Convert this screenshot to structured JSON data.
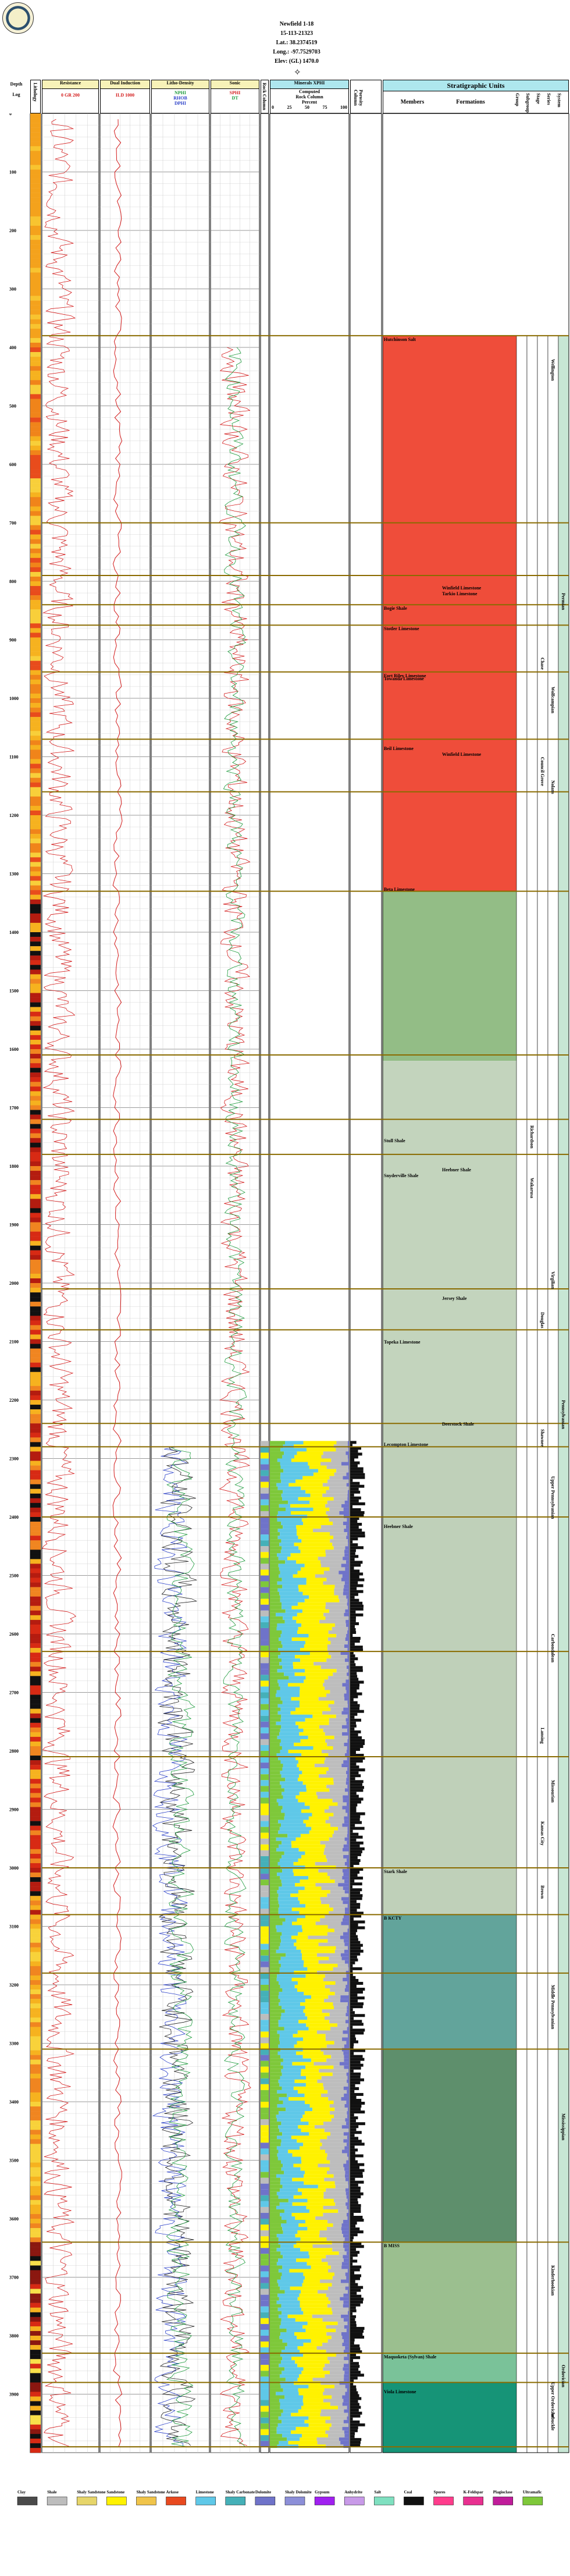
{
  "well": {
    "name": "Newfield 1-18",
    "api": "15-113-21323",
    "lat": "Lat.: 38.2374519",
    "long": "Long.: -97.7529703",
    "elev": "Elev: (GL) 1470.0"
  },
  "header": {
    "depth_label": "Depth",
    "log_label": "Log",
    "columns": [
      {
        "id": "lith",
        "title": "Lithology"
      },
      {
        "id": "resist",
        "title": "Resistance"
      },
      {
        "id": "dual",
        "title": "Dual Induction"
      },
      {
        "id": "litho_density",
        "title": "Litho-Density"
      },
      {
        "id": "sonic",
        "title": "Sonic"
      },
      {
        "id": "thin",
        "title": "Rock Column"
      },
      {
        "id": "minerals",
        "title": "Minerals XPHI"
      },
      {
        "id": "porosity",
        "title": "Porosity Column"
      }
    ],
    "resist_scale": [
      "GR",
      "0",
      "0",
      "200",
      "0",
      "1"
    ],
    "dual_scale": [
      "ILD",
      "1000"
    ],
    "litho_scale": [
      "NPHI",
      "RHOB",
      "DPHI"
    ],
    "sonic_scale": [
      "SPHI",
      "DT"
    ],
    "minerals_sub": [
      "Computed",
      "Rock Column"
    ],
    "minerals_percent": "Percent",
    "minerals_ticks": [
      "0",
      "25",
      "50",
      "75",
      "100"
    ],
    "compass": "✧"
  },
  "strat_header": {
    "title": "Stratigraphic Units",
    "members": "Members",
    "formations": "Formations",
    "vertical": [
      "Group",
      "Subgroup",
      "Stage",
      "Series",
      "System"
    ]
  },
  "depth_ticks": [
    "0",
    "100",
    "200",
    "300",
    "400",
    "500",
    "600",
    "700",
    "800",
    "900",
    "1000",
    "1100",
    "1200",
    "1300",
    "1400",
    "1500",
    "1600",
    "1700",
    "1800",
    "1900",
    "2000",
    "2100",
    "2200",
    "2300",
    "2400",
    "2500",
    "2600",
    "2700",
    "2800",
    "2900",
    "3000",
    "3100",
    "3200",
    "3300",
    "3400",
    "3500",
    "3600",
    "3700",
    "3800",
    "3900"
  ],
  "members": [
    {
      "name": "Hutchinson Salt",
      "depth": 380
    },
    {
      "name": "Winfield Limestone",
      "depth": 805
    },
    {
      "name": "Tarkio Limestone",
      "depth": 815
    },
    {
      "name": "Bogie Shale",
      "depth": 840
    },
    {
      "name": "Stotler Limestone",
      "depth": 875
    },
    {
      "name": "Fort Riley Limestone",
      "depth": 955
    },
    {
      "name": "Towanda Limestone",
      "depth": 960
    },
    {
      "name": "Beil Limestone",
      "depth": 1080
    },
    {
      "name": "Winfield Limestone",
      "depth": 1090
    },
    {
      "name": "Beta Limestone",
      "depth": 1320
    },
    {
      "name": "Stull Shale",
      "depth": 1750
    },
    {
      "name": "Heebner Shale",
      "depth": 1800
    },
    {
      "name": "Snyderville Shale",
      "depth": 1810
    },
    {
      "name": "Jersey Shale",
      "depth": 2020
    },
    {
      "name": "Topeka Limestone",
      "depth": 2095
    },
    {
      "name": "Deerstock Shale",
      "depth": 2235
    },
    {
      "name": "Lecompton Limestone",
      "depth": 2270
    },
    {
      "name": "Heebner Shale",
      "depth": 2410
    },
    {
      "name": "Stark Shale",
      "depth": 3000
    },
    {
      "name": "B KCTY",
      "depth": 3080
    },
    {
      "name": "B MISS",
      "depth": 3640
    },
    {
      "name": "Maquoketa (Sylvan) Shale",
      "depth": 3830
    },
    {
      "name": "Viola Limestone",
      "depth": 3890
    }
  ],
  "formation_labels": [
    {
      "name": "Wellington",
      "col": 3,
      "depth": 420
    },
    {
      "name": "Nolans",
      "col": 3,
      "depth": 1140
    },
    {
      "name": "Council Grove",
      "col": 2,
      "depth": 1100
    },
    {
      "name": "Chase",
      "col": 2,
      "depth": 930
    },
    {
      "name": "Wolfcampian",
      "col": 3,
      "depth": 980
    },
    {
      "name": "Permian",
      "col": 4,
      "depth": 820
    },
    {
      "name": "Wakarusa",
      "col": 1,
      "depth": 1820
    },
    {
      "name": "Richardson",
      "col": 1,
      "depth": 1730
    },
    {
      "name": "Shawnee",
      "col": 2,
      "depth": 2250
    },
    {
      "name": "Douglas",
      "col": 2,
      "depth": 2050
    },
    {
      "name": "Virgilian",
      "col": 3,
      "depth": 1980
    },
    {
      "name": "Upper Pennsylvanian",
      "col": 3,
      "depth": 2330
    },
    {
      "name": "Pennsylvanian",
      "col": 4,
      "depth": 2200
    },
    {
      "name": "Carbondalean",
      "col": 3,
      "depth": 2600
    },
    {
      "name": "Lansing",
      "col": 2,
      "depth": 2760
    },
    {
      "name": "Missourian",
      "col": 3,
      "depth": 2850
    },
    {
      "name": "Kansas City",
      "col": 2,
      "depth": 2920
    },
    {
      "name": "Brown",
      "col": 2,
      "depth": 3030
    },
    {
      "name": "Middle Pennsylvanian",
      "col": 3,
      "depth": 3200
    },
    {
      "name": "Mississippian",
      "col": 4,
      "depth": 3420
    },
    {
      "name": "Kinderhookian",
      "col": 3,
      "depth": 3680
    },
    {
      "name": "Ordovician",
      "col": 4,
      "depth": 3850
    },
    {
      "name": "Upper Ordovician",
      "col": 3,
      "depth": 3880
    },
    {
      "name": "Arbuckle",
      "col": 3,
      "depth": 3930
    }
  ],
  "strat_zones": [
    {
      "from": 380,
      "to": 1330,
      "color": "#ef4d3a"
    },
    {
      "from": 1330,
      "to": 1620,
      "color": "#93bd86"
    },
    {
      "from": 1620,
      "to": 2240,
      "color": "#c3d4bd"
    },
    {
      "from": 2240,
      "to": 3080,
      "color": "#bfd0b9"
    },
    {
      "from": 3080,
      "to": 3310,
      "color": "#62a49b"
    },
    {
      "from": 3310,
      "to": 3640,
      "color": "#5e8f6c"
    },
    {
      "from": 3640,
      "to": 3830,
      "color": "#9bbf8f"
    },
    {
      "from": 3830,
      "to": 3880,
      "color": "#7ac299"
    },
    {
      "from": 3880,
      "to": 4000,
      "color": "#169477"
    }
  ],
  "legend": [
    {
      "label": "Clay",
      "color": "#4a4a4a"
    },
    {
      "label": "Shale",
      "color": "#bdbdbd"
    },
    {
      "label": "Shaly Sandstone",
      "color": "#e6d56a"
    },
    {
      "label": "Sandstone",
      "color": "#fff200"
    },
    {
      "label": "Shaly Sandstone",
      "color": "#f0c44a"
    },
    {
      "label": "Arkose",
      "color": "#e8491f"
    },
    {
      "label": "Limestone",
      "color": "#5fc8e8"
    },
    {
      "label": "Shaly Carbonate",
      "color": "#45b0b8"
    },
    {
      "label": "Dolomite",
      "color": "#6f73c9"
    },
    {
      "label": "Shaly Dolomite",
      "color": "#8c8fd8"
    },
    {
      "label": "Gypsum",
      "color": "#a020f0"
    },
    {
      "label": "Anhydrite",
      "color": "#c89ae8"
    },
    {
      "label": "Salt",
      "color": "#7fe0c0"
    },
    {
      "label": "Coal",
      "color": "#111111"
    },
    {
      "label": "Spores",
      "color": "#ff3c8c"
    },
    {
      "label": "K-Feldspar",
      "color": "#e83090"
    },
    {
      "label": "Plagioclase",
      "color": "#c01c9a"
    },
    {
      "label": "Ultramafic",
      "color": "#7ec83a"
    }
  ],
  "colors": {
    "resist_curve": "#d31a1a",
    "gamma_curve": "#d31a1a",
    "litho_blue": "#2a3fc8",
    "litho_green": "#1a9a3a",
    "grid": "#888888",
    "boundary": "#8a6b00"
  }
}
